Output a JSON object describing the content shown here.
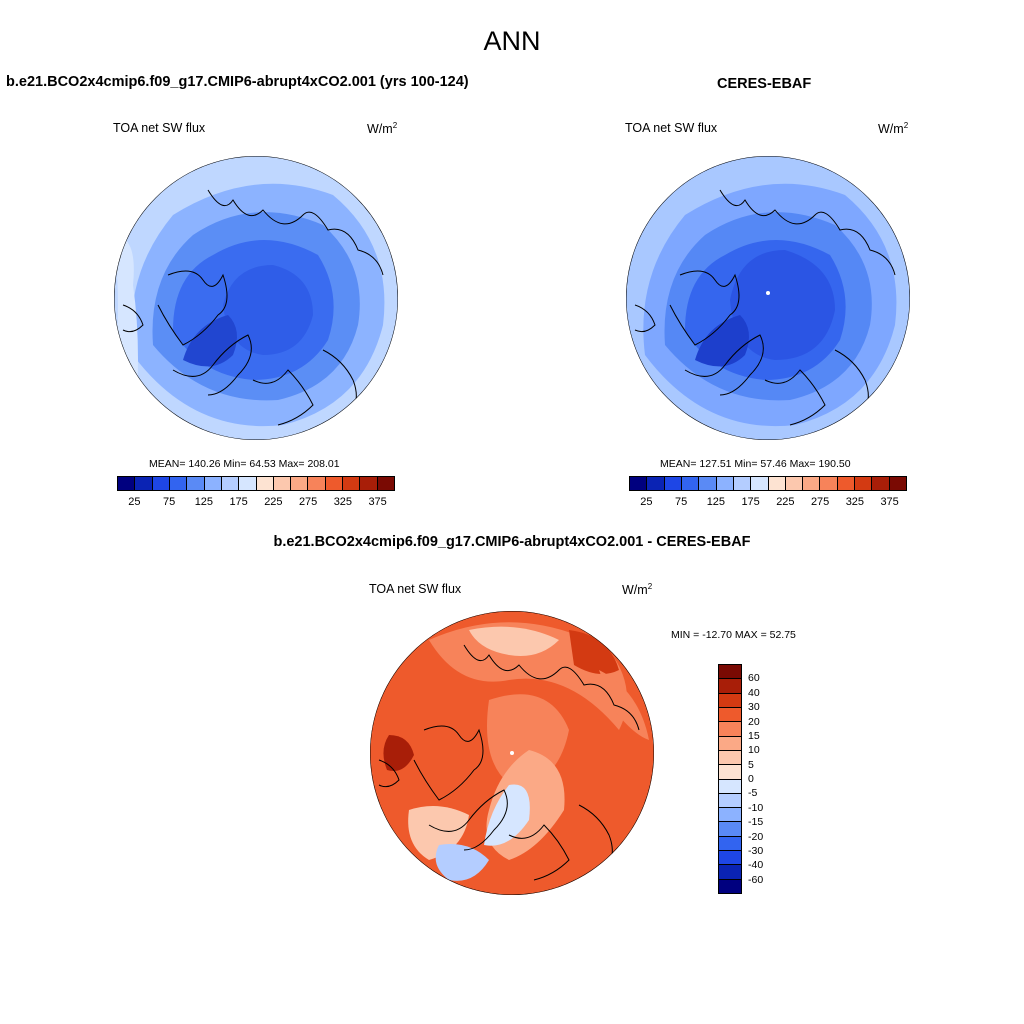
{
  "title": "ANN",
  "panels": [
    {
      "title": "b.e21.BCO2x4cmip6.f09_g17.CMIP6-abrupt4xCO2.001 (yrs 100-124)",
      "variable": "TOA net SW flux",
      "units": "W/m",
      "units_exp": "2",
      "stats": "MEAN= 140.26  Min=  64.53  Max= 208.01",
      "colorbar_ticks": [
        "25",
        "75",
        "125",
        "175",
        "225",
        "275",
        "325",
        "375"
      ],
      "colors": {
        "outer": "#bfd7ff",
        "mid1": "#8cb3ff",
        "mid2": "#5b8ef5",
        "inner": "#3a6cf0",
        "core": "#2f5de8",
        "deep": "#2146d0"
      }
    },
    {
      "title": "CERES-EBAF",
      "variable": "TOA net SW flux",
      "units": "W/m",
      "units_exp": "2",
      "stats": "MEAN= 127.51  Min=  57.46  Max= 190.50",
      "colorbar_ticks": [
        "25",
        "75",
        "125",
        "175",
        "225",
        "275",
        "325",
        "375"
      ],
      "colors": {
        "outer": "#a9c8ff",
        "mid1": "#7ea7ff",
        "mid2": "#5588f5",
        "inner": "#3566ee",
        "core": "#2b55e4",
        "deep": "#1d3fcc"
      }
    },
    {
      "title": "b.e21.BCO2x4cmip6.f09_g17.CMIP6-abrupt4xCO2.001 - CERES-EBAF",
      "variable": "TOA net SW flux",
      "units": "W/m",
      "units_exp": "2",
      "stats": "MIN = -12.70 MAX =  52.75",
      "colorbar_ticks": [
        "60",
        "40",
        "30",
        "20",
        "15",
        "10",
        "5",
        "0",
        "-5",
        "-10",
        "-15",
        "-20",
        "-30",
        "-40",
        "-60"
      ]
    }
  ],
  "palette_abs": [
    "#00007f",
    "#0a23b4",
    "#1e46e6",
    "#3264f0",
    "#5a8af5",
    "#8cb2ff",
    "#b4cdff",
    "#d6e6ff",
    "#fde3d2",
    "#fcc8ae",
    "#fba986",
    "#f7835a",
    "#ee5a2c",
    "#d33a12",
    "#a81e08",
    "#7a0a03"
  ],
  "palette_diff": [
    "#7a0a03",
    "#a81e08",
    "#d33a12",
    "#ee5a2c",
    "#f7835a",
    "#fba986",
    "#fcc8ae",
    "#fde3d2",
    "#d6e6ff",
    "#b4cdff",
    "#8cb2ff",
    "#5a8af5",
    "#3264f0",
    "#1e46e6",
    "#0a23b4",
    "#00007f"
  ]
}
